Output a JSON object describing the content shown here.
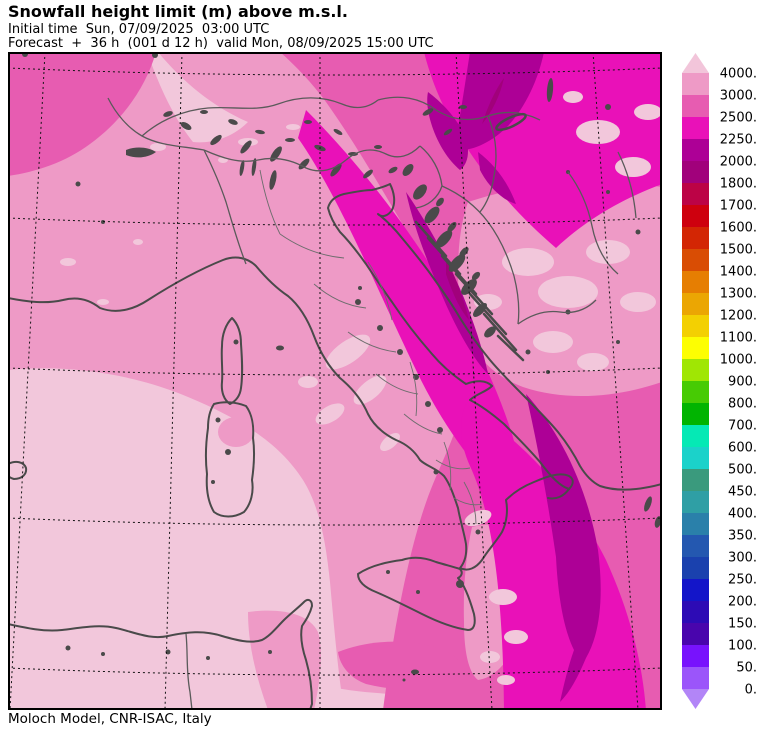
{
  "header": {
    "title": "Snowfall height limit (m) above m.s.l.",
    "initial_time_line": "Initial time  Sun, 07/09/2025  03:00 UTC",
    "forecast_line": "Forecast  +  36 h  (001 d 12 h)  valid Mon, 08/09/2025 15:00 UTC"
  },
  "footer": {
    "credit": "Moloch Model, CNR-ISAC, Italy"
  },
  "colorbar": {
    "unit": "m",
    "over_color": "#f2c5da",
    "under_color": "#b285f7",
    "labels": [
      "4000.",
      "3000.",
      "2500.",
      "2250.",
      "2000.",
      "1800.",
      "1700.",
      "1600.",
      "1500.",
      "1400.",
      "1300.",
      "1200.",
      "1100.",
      "1000.",
      "900.",
      "800.",
      "700.",
      "600.",
      "500.",
      "450.",
      "400.",
      "350.",
      "300.",
      "250.",
      "200.",
      "150.",
      "100.",
      "50.",
      "0."
    ],
    "segments": [
      {
        "from": 3000,
        "to": 4000,
        "color": "#ee9ac6"
      },
      {
        "from": 2500,
        "to": 3000,
        "color": "#e75cb1"
      },
      {
        "from": 2250,
        "to": 2500,
        "color": "#e911b8"
      },
      {
        "from": 2000,
        "to": 2250,
        "color": "#ad0096"
      },
      {
        "from": 1800,
        "to": 2000,
        "color": "#a1017b"
      },
      {
        "from": 1700,
        "to": 1800,
        "color": "#bc0346"
      },
      {
        "from": 1600,
        "to": 1700,
        "color": "#ce000e"
      },
      {
        "from": 1500,
        "to": 1600,
        "color": "#d32604"
      },
      {
        "from": 1400,
        "to": 1500,
        "color": "#d94d04"
      },
      {
        "from": 1300,
        "to": 1400,
        "color": "#e67e02"
      },
      {
        "from": 1200,
        "to": 1300,
        "color": "#eba603"
      },
      {
        "from": 1100,
        "to": 1200,
        "color": "#f3d002"
      },
      {
        "from": 1000,
        "to": 1100,
        "color": "#fdfe02"
      },
      {
        "from": 900,
        "to": 1000,
        "color": "#a0e604"
      },
      {
        "from": 800,
        "to": 900,
        "color": "#47cb04"
      },
      {
        "from": 700,
        "to": 800,
        "color": "#01b401"
      },
      {
        "from": 600,
        "to": 700,
        "color": "#05e9b5"
      },
      {
        "from": 500,
        "to": 600,
        "color": "#1bd2ca"
      },
      {
        "from": 450,
        "to": 500,
        "color": "#3a9a7d"
      },
      {
        "from": 400,
        "to": 450,
        "color": "#2f9fa5"
      },
      {
        "from": 350,
        "to": 400,
        "color": "#2a80aa"
      },
      {
        "from": 300,
        "to": 350,
        "color": "#2458b0"
      },
      {
        "from": 250,
        "to": 300,
        "color": "#1a41ae"
      },
      {
        "from": 200,
        "to": 250,
        "color": "#1315c9"
      },
      {
        "from": 150,
        "to": 200,
        "color": "#2d0bb5"
      },
      {
        "from": 100,
        "to": 150,
        "color": "#4905ad"
      },
      {
        "from": 50,
        "to": 100,
        "color": "#7812fd"
      },
      {
        "from": 0,
        "to": 50,
        "color": "#9b55fa"
      }
    ]
  },
  "map": {
    "palette": {
      "l0": "#f2c7db",
      "l1": "#ee9ac6",
      "l2": "#e75cb1",
      "l3": "#e911b8",
      "l4": "#ad0096",
      "l5": "#a1017b",
      "terrain": "#4a4a4a",
      "coast": "#4a4a4a",
      "border": "#5a5a5a",
      "border2": "#6d6d6d",
      "grid": "#141414",
      "frame": "#000000"
    }
  }
}
